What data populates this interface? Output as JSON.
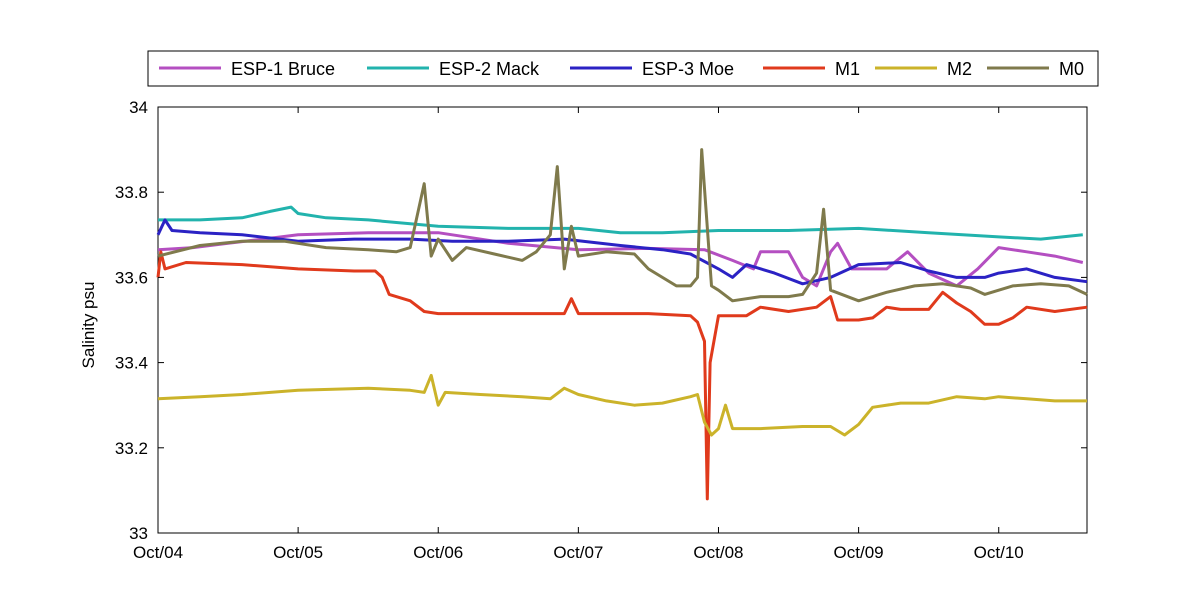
{
  "chart_data": {
    "type": "line",
    "title": "",
    "xlabel": "",
    "ylabel": "Salinity psu",
    "xlim": [
      0,
      6.63
    ],
    "ylim": [
      33,
      34
    ],
    "x_ticks": [
      {
        "value": 0,
        "label": "Oct/04"
      },
      {
        "value": 1,
        "label": "Oct/05"
      },
      {
        "value": 2,
        "label": "Oct/06"
      },
      {
        "value": 3,
        "label": "Oct/07"
      },
      {
        "value": 4,
        "label": "Oct/08"
      },
      {
        "value": 5,
        "label": "Oct/09"
      },
      {
        "value": 6,
        "label": "Oct/10"
      }
    ],
    "y_ticks": [
      {
        "value": 33,
        "label": "33"
      },
      {
        "value": 33.2,
        "label": "33.2"
      },
      {
        "value": 33.4,
        "label": "33.4"
      },
      {
        "value": 33.6,
        "label": "33.6"
      },
      {
        "value": 33.8,
        "label": "33.8"
      },
      {
        "value": 34,
        "label": "34"
      }
    ],
    "grid": false,
    "legend_position": "top",
    "series": [
      {
        "name": "ESP-1 Bruce",
        "color": "#b44fc1",
        "points": [
          [
            0,
            33.665
          ],
          [
            0.25,
            33.67
          ],
          [
            0.5,
            33.68
          ],
          [
            0.75,
            33.69
          ],
          [
            1.0,
            33.7
          ],
          [
            1.5,
            33.705
          ],
          [
            2.0,
            33.705
          ],
          [
            2.5,
            33.68
          ],
          [
            3.0,
            33.665
          ],
          [
            3.5,
            33.668
          ],
          [
            3.9,
            33.665
          ],
          [
            4.1,
            33.64
          ],
          [
            4.25,
            33.62
          ],
          [
            4.3,
            33.66
          ],
          [
            4.5,
            33.66
          ],
          [
            4.6,
            33.6
          ],
          [
            4.7,
            33.58
          ],
          [
            4.8,
            33.66
          ],
          [
            4.85,
            33.68
          ],
          [
            4.95,
            33.62
          ],
          [
            5.2,
            33.62
          ],
          [
            5.35,
            33.66
          ],
          [
            5.5,
            33.61
          ],
          [
            5.7,
            33.58
          ],
          [
            5.85,
            33.62
          ],
          [
            6.0,
            33.67
          ],
          [
            6.2,
            33.66
          ],
          [
            6.4,
            33.65
          ],
          [
            6.6,
            33.635
          ]
        ]
      },
      {
        "name": "ESP-2 Mack",
        "color": "#22b3ad",
        "points": [
          [
            0,
            33.735
          ],
          [
            0.3,
            33.735
          ],
          [
            0.6,
            33.74
          ],
          [
            0.8,
            33.755
          ],
          [
            0.95,
            33.765
          ],
          [
            1.0,
            33.75
          ],
          [
            1.2,
            33.74
          ],
          [
            1.5,
            33.735
          ],
          [
            2.0,
            33.72
          ],
          [
            2.5,
            33.715
          ],
          [
            3.0,
            33.715
          ],
          [
            3.3,
            33.705
          ],
          [
            3.6,
            33.705
          ],
          [
            4.0,
            33.71
          ],
          [
            4.5,
            33.71
          ],
          [
            5.0,
            33.715
          ],
          [
            5.5,
            33.705
          ],
          [
            6.0,
            33.695
          ],
          [
            6.3,
            33.69
          ],
          [
            6.6,
            33.7
          ]
        ]
      },
      {
        "name": "ESP-3 Moe",
        "color": "#2b22c4",
        "points": [
          [
            0,
            33.7
          ],
          [
            0.05,
            33.735
          ],
          [
            0.1,
            33.71
          ],
          [
            0.3,
            33.705
          ],
          [
            0.6,
            33.7
          ],
          [
            1.0,
            33.685
          ],
          [
            1.4,
            33.69
          ],
          [
            1.8,
            33.69
          ],
          [
            2.1,
            33.685
          ],
          [
            2.5,
            33.685
          ],
          [
            2.9,
            33.69
          ],
          [
            3.3,
            33.675
          ],
          [
            3.6,
            33.665
          ],
          [
            3.8,
            33.655
          ],
          [
            4.0,
            33.62
          ],
          [
            4.1,
            33.6
          ],
          [
            4.2,
            33.63
          ],
          [
            4.4,
            33.61
          ],
          [
            4.6,
            33.585
          ],
          [
            4.8,
            33.6
          ],
          [
            5.0,
            33.63
          ],
          [
            5.3,
            33.635
          ],
          [
            5.5,
            33.615
          ],
          [
            5.7,
            33.6
          ],
          [
            5.9,
            33.6
          ],
          [
            6.0,
            33.61
          ],
          [
            6.2,
            33.62
          ],
          [
            6.4,
            33.6
          ],
          [
            6.63,
            33.59
          ]
        ]
      },
      {
        "name": "M1",
        "color": "#e03a1c",
        "points": [
          [
            0,
            33.6
          ],
          [
            0.02,
            33.66
          ],
          [
            0.05,
            33.62
          ],
          [
            0.2,
            33.635
          ],
          [
            0.6,
            33.63
          ],
          [
            1.0,
            33.62
          ],
          [
            1.4,
            33.615
          ],
          [
            1.55,
            33.615
          ],
          [
            1.6,
            33.6
          ],
          [
            1.65,
            33.56
          ],
          [
            1.8,
            33.545
          ],
          [
            1.9,
            33.52
          ],
          [
            2.0,
            33.515
          ],
          [
            2.5,
            33.515
          ],
          [
            2.9,
            33.515
          ],
          [
            2.95,
            33.55
          ],
          [
            3.0,
            33.515
          ],
          [
            3.5,
            33.515
          ],
          [
            3.8,
            33.51
          ],
          [
            3.85,
            33.495
          ],
          [
            3.9,
            33.45
          ],
          [
            3.92,
            33.08
          ],
          [
            3.94,
            33.4
          ],
          [
            4.0,
            33.51
          ],
          [
            4.2,
            33.51
          ],
          [
            4.3,
            33.53
          ],
          [
            4.5,
            33.52
          ],
          [
            4.7,
            33.53
          ],
          [
            4.8,
            33.555
          ],
          [
            4.85,
            33.5
          ],
          [
            5.0,
            33.5
          ],
          [
            5.1,
            33.505
          ],
          [
            5.2,
            33.53
          ],
          [
            5.3,
            33.525
          ],
          [
            5.5,
            33.525
          ],
          [
            5.6,
            33.565
          ],
          [
            5.7,
            33.54
          ],
          [
            5.8,
            33.52
          ],
          [
            5.9,
            33.49
          ],
          [
            6.0,
            33.49
          ],
          [
            6.1,
            33.505
          ],
          [
            6.2,
            33.53
          ],
          [
            6.4,
            33.52
          ],
          [
            6.63,
            33.53
          ]
        ]
      },
      {
        "name": "M2",
        "color": "#cbb32a",
        "points": [
          [
            0,
            33.315
          ],
          [
            0.3,
            33.32
          ],
          [
            0.6,
            33.325
          ],
          [
            1.0,
            33.335
          ],
          [
            1.5,
            33.34
          ],
          [
            1.8,
            33.335
          ],
          [
            1.9,
            33.33
          ],
          [
            1.95,
            33.37
          ],
          [
            2.0,
            33.3
          ],
          [
            2.05,
            33.33
          ],
          [
            2.3,
            33.325
          ],
          [
            2.6,
            33.32
          ],
          [
            2.8,
            33.315
          ],
          [
            2.9,
            33.34
          ],
          [
            3.0,
            33.325
          ],
          [
            3.2,
            33.31
          ],
          [
            3.4,
            33.3
          ],
          [
            3.6,
            33.305
          ],
          [
            3.8,
            33.32
          ],
          [
            3.85,
            33.325
          ],
          [
            3.9,
            33.26
          ],
          [
            3.95,
            33.23
          ],
          [
            4.0,
            33.245
          ],
          [
            4.05,
            33.3
          ],
          [
            4.1,
            33.245
          ],
          [
            4.3,
            33.245
          ],
          [
            4.6,
            33.25
          ],
          [
            4.8,
            33.25
          ],
          [
            4.9,
            33.23
          ],
          [
            5.0,
            33.255
          ],
          [
            5.1,
            33.295
          ],
          [
            5.3,
            33.305
          ],
          [
            5.5,
            33.305
          ],
          [
            5.7,
            33.32
          ],
          [
            5.9,
            33.315
          ],
          [
            6.0,
            33.32
          ],
          [
            6.2,
            33.315
          ],
          [
            6.4,
            33.31
          ],
          [
            6.63,
            33.31
          ]
        ]
      },
      {
        "name": "M0",
        "color": "#7f7a4c",
        "points": [
          [
            0,
            33.65
          ],
          [
            0.3,
            33.675
          ],
          [
            0.6,
            33.685
          ],
          [
            0.9,
            33.685
          ],
          [
            1.2,
            33.67
          ],
          [
            1.5,
            33.665
          ],
          [
            1.7,
            33.66
          ],
          [
            1.8,
            33.67
          ],
          [
            1.9,
            33.82
          ],
          [
            1.95,
            33.65
          ],
          [
            2.0,
            33.69
          ],
          [
            2.1,
            33.64
          ],
          [
            2.2,
            33.67
          ],
          [
            2.4,
            33.655
          ],
          [
            2.6,
            33.64
          ],
          [
            2.7,
            33.66
          ],
          [
            2.8,
            33.7
          ],
          [
            2.85,
            33.86
          ],
          [
            2.9,
            33.62
          ],
          [
            2.95,
            33.72
          ],
          [
            3.0,
            33.65
          ],
          [
            3.2,
            33.66
          ],
          [
            3.4,
            33.655
          ],
          [
            3.5,
            33.62
          ],
          [
            3.6,
            33.6
          ],
          [
            3.7,
            33.58
          ],
          [
            3.8,
            33.58
          ],
          [
            3.85,
            33.6
          ],
          [
            3.88,
            33.9
          ],
          [
            3.95,
            33.58
          ],
          [
            4.0,
            33.57
          ],
          [
            4.1,
            33.545
          ],
          [
            4.3,
            33.555
          ],
          [
            4.5,
            33.555
          ],
          [
            4.6,
            33.56
          ],
          [
            4.7,
            33.61
          ],
          [
            4.75,
            33.76
          ],
          [
            4.8,
            33.57
          ],
          [
            5.0,
            33.545
          ],
          [
            5.2,
            33.565
          ],
          [
            5.4,
            33.58
          ],
          [
            5.6,
            33.585
          ],
          [
            5.8,
            33.575
          ],
          [
            5.9,
            33.56
          ],
          [
            6.0,
            33.57
          ],
          [
            6.1,
            33.58
          ],
          [
            6.3,
            33.585
          ],
          [
            6.5,
            33.58
          ],
          [
            6.63,
            33.56
          ]
        ]
      }
    ]
  }
}
